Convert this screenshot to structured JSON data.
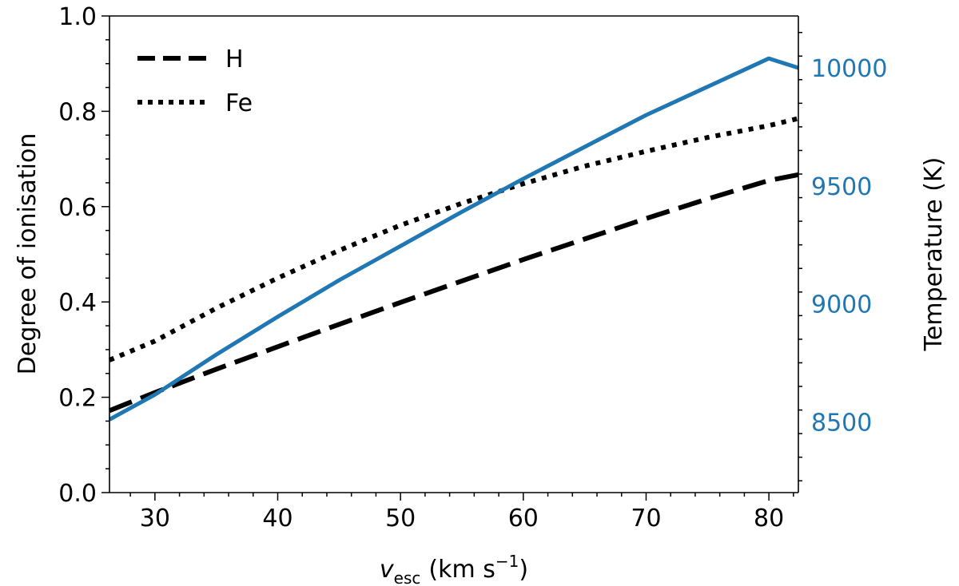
{
  "chart_data": {
    "type": "line",
    "xlabel_main": "v",
    "xlabel_sub": "esc",
    "xlabel_unit_pre": "(km s",
    "xlabel_unit_sup": "−1",
    "xlabel_unit_post": ")",
    "ylabel_left": "Degree of ionisation",
    "ylabel_right": "Temperature (K)",
    "xlim": [
      26.3,
      82.4
    ],
    "ylim_left": [
      0.0,
      1.0
    ],
    "ylim_right": [
      8200,
      10220
    ],
    "x_ticks": [
      "30",
      "40",
      "50",
      "60",
      "70",
      "80"
    ],
    "y_left_ticks": [
      "0.0",
      "0.2",
      "0.4",
      "0.6",
      "0.8",
      "1.0"
    ],
    "y_right_ticks": [
      "8500",
      "9000",
      "9500",
      "10000"
    ],
    "colors": {
      "axis": "#000000",
      "temperature": "#1f77b4"
    },
    "legend": {
      "placement": "top-left",
      "entries": [
        "H",
        "Fe"
      ]
    },
    "series": [
      {
        "name": "H",
        "axis": "left",
        "style": "dashed",
        "color": "#000000",
        "x": [
          26.3,
          30,
          35,
          40,
          45,
          50,
          55,
          60,
          65,
          70,
          75,
          80,
          82.4
        ],
        "y": [
          0.172,
          0.21,
          0.259,
          0.306,
          0.353,
          0.399,
          0.444,
          0.489,
          0.532,
          0.575,
          0.616,
          0.655,
          0.667
        ]
      },
      {
        "name": "Fe",
        "axis": "left",
        "style": "dotted",
        "color": "#000000",
        "x": [
          26.3,
          30,
          35,
          40,
          45,
          50,
          55,
          60,
          65,
          70,
          75,
          80,
          82.4
        ],
        "y": [
          0.278,
          0.318,
          0.387,
          0.45,
          0.508,
          0.561,
          0.607,
          0.648,
          0.685,
          0.716,
          0.745,
          0.77,
          0.785
        ]
      },
      {
        "name": "",
        "axis": "right",
        "style": "solid",
        "color": "#1f77b4",
        "x": [
          26.3,
          30,
          35,
          40,
          45,
          50,
          55,
          60,
          65,
          70,
          75,
          80,
          82.4
        ],
        "y": [
          8510,
          8615,
          8785,
          8945,
          9100,
          9245,
          9390,
          9530,
          9665,
          9800,
          9920,
          10040,
          10000
        ]
      }
    ]
  }
}
